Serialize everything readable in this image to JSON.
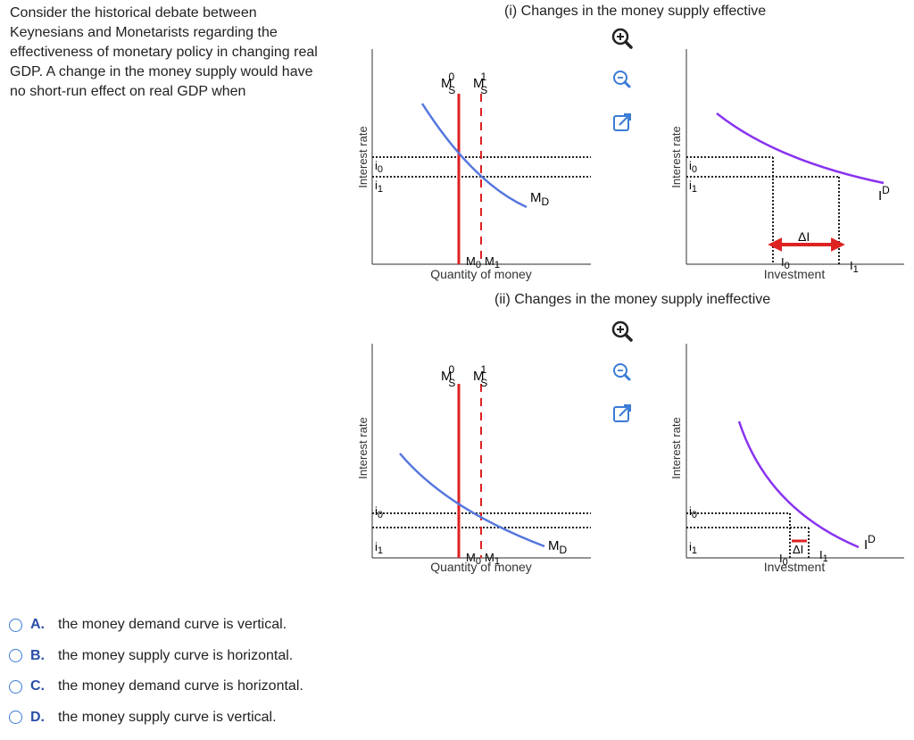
{
  "question": "Consider the historical debate between Keynesians and Monetarists regarding the effectiveness of monetary policy in changing real GDP. A change in the money supply would have no short-run effect on real GDP when",
  "panels": {
    "effective_title": "(i) Changes in the money supply effective",
    "ineffective_title": "(ii) Changes in the money supply ineffective"
  },
  "money_graph": {
    "ylabel": "Interest rate",
    "xlabel": "Quantity of money",
    "ms0_main": "M",
    "ms0_sup": "0",
    "ms0_sub": "S",
    "ms1_main": "M",
    "ms1_sup": "1",
    "ms1_sub": "S",
    "md_main": "M",
    "md_sub": "D",
    "i0_main": "i",
    "i0_sub": "0",
    "i1_main": "i",
    "i1_sub": "1",
    "m0_main": "M",
    "m0_sub": "0",
    "m1_main": "M",
    "m1_sub": "1"
  },
  "investment_graph": {
    "ylabel": "Interest rate",
    "xlabel": "Investment",
    "id_main": "I",
    "id_sup": "D",
    "delta": "ΔI",
    "i0_main": "i",
    "i0_sub": "0",
    "i1_main": "i",
    "i1_sub": "1",
    "I0_main": "I",
    "I0_sub": "0",
    "I1_main": "I",
    "I1_sub": "1"
  },
  "options": [
    {
      "letter": "A.",
      "text": "the money demand curve is vertical."
    },
    {
      "letter": "B.",
      "text": "the money supply curve is horizontal."
    },
    {
      "letter": "C.",
      "text": "the money demand curve is horizontal."
    },
    {
      "letter": "D.",
      "text": "the money supply curve is vertical."
    }
  ],
  "colors": {
    "supply": "#dd2222",
    "demand": "#5577dd",
    "investment": "#8833ee",
    "accent": "#2b4fa8"
  }
}
